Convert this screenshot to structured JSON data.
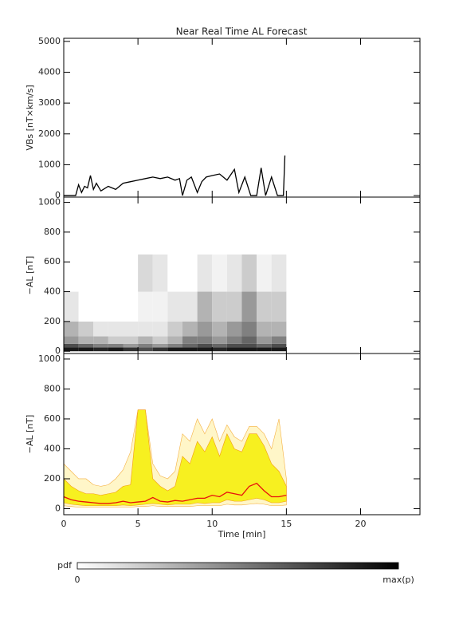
{
  "chart_data": [
    {
      "type": "line",
      "title": "Near Real Time AL Forecast",
      "ylabel": "VBs [nT×km/s]",
      "xlim": [
        0,
        24
      ],
      "xticks": [
        0,
        5,
        10,
        15,
        20
      ],
      "ylim": [
        -50,
        5100
      ],
      "yticks": [
        0,
        1000,
        2000,
        3000,
        4000,
        5000
      ],
      "x": [
        0,
        0.8,
        1.0,
        1.2,
        1.4,
        1.6,
        1.8,
        2.0,
        2.2,
        2.5,
        3.0,
        3.5,
        4.0,
        4.5,
        5.0,
        5.5,
        6.0,
        6.5,
        7.0,
        7.5,
        7.8,
        8.0,
        8.3,
        8.6,
        9.0,
        9.3,
        9.6,
        10.0,
        10.5,
        11.0,
        11.5,
        11.8,
        12.2,
        12.6,
        13.0,
        13.3,
        13.6,
        14.0,
        14.4,
        14.8,
        14.9
      ],
      "series": [
        {
          "color": "#000000",
          "values": [
            0,
            0,
            350,
            100,
            300,
            250,
            650,
            200,
            400,
            150,
            300,
            200,
            400,
            450,
            500,
            550,
            600,
            550,
            600,
            500,
            550,
            0,
            500,
            600,
            100,
            450,
            600,
            650,
            700,
            500,
            850,
            100,
            600,
            0,
            0,
            900,
            0,
            600,
            0,
            0,
            1300
          ]
        }
      ]
    },
    {
      "type": "heatmap",
      "ylabel": "−AL [nT]",
      "xlim": [
        0,
        24
      ],
      "xticks": [
        0,
        5,
        10,
        15,
        20
      ],
      "ylim": [
        -15,
        1035
      ],
      "yticks": [
        0,
        200,
        400,
        600,
        800,
        1000
      ],
      "x_edges": [
        0,
        1,
        2,
        3,
        4,
        5,
        6,
        7,
        8,
        9,
        10,
        11,
        12,
        13,
        14,
        15
      ],
      "y_edges": [
        0,
        25,
        50,
        100,
        200,
        400,
        650
      ],
      "z": [
        [
          0.9,
          0.9,
          0.85,
          0.9,
          0.8,
          0.7,
          0.8,
          0.9,
          0.9,
          0.9,
          0.85,
          0.9,
          0.9,
          0.9,
          0.9
        ],
        [
          0.7,
          0.6,
          0.5,
          0.5,
          0.4,
          0.5,
          0.4,
          0.5,
          0.6,
          0.7,
          0.6,
          0.7,
          0.7,
          0.6,
          0.7
        ],
        [
          0.4,
          0.3,
          0.3,
          0.2,
          0.2,
          0.3,
          0.2,
          0.3,
          0.5,
          0.5,
          0.4,
          0.5,
          0.6,
          0.4,
          0.5
        ],
        [
          0.3,
          0.2,
          0.1,
          0.1,
          0.1,
          0.1,
          0.1,
          0.2,
          0.3,
          0.4,
          0.3,
          0.4,
          0.5,
          0.3,
          0.3
        ],
        [
          0.1,
          0,
          0,
          0,
          0,
          0.05,
          0.05,
          0.1,
          0.1,
          0.3,
          0.2,
          0.2,
          0.4,
          0.2,
          0.2
        ],
        [
          0,
          0,
          0,
          0,
          0,
          0.15,
          0.1,
          0,
          0,
          0.1,
          0.05,
          0.1,
          0.2,
          0.05,
          0.1
        ]
      ]
    },
    {
      "type": "band",
      "ylabel": "−AL [nT]",
      "xlabel": "Time [min]",
      "xlim": [
        0,
        24
      ],
      "xticks": [
        0,
        5,
        10,
        15,
        20
      ],
      "ylim": [
        -40,
        1037
      ],
      "yticks": [
        0,
        200,
        400,
        600,
        800,
        1000
      ],
      "x": [
        0,
        0.5,
        1,
        1.5,
        2,
        2.5,
        3,
        3.5,
        4,
        4.5,
        5,
        5.5,
        6,
        6.5,
        7,
        7.5,
        8,
        8.5,
        9,
        9.5,
        10,
        10.5,
        11,
        11.5,
        12,
        12.5,
        13,
        13.5,
        14,
        14.5,
        15
      ],
      "bands": [
        {
          "color": "#fff6c8",
          "edge": "#f5b041",
          "lower": [
            20,
            15,
            10,
            10,
            10,
            10,
            10,
            10,
            10,
            10,
            15,
            15,
            20,
            15,
            15,
            15,
            15,
            15,
            20,
            20,
            20,
            20,
            30,
            25,
            25,
            30,
            35,
            30,
            20,
            20,
            25
          ],
          "upper": [
            300,
            250,
            200,
            200,
            160,
            150,
            160,
            200,
            260,
            380,
            660,
            660,
            300,
            220,
            200,
            250,
            500,
            450,
            600,
            500,
            600,
            450,
            560,
            480,
            450,
            550,
            550,
            500,
            400,
            600,
            200
          ]
        },
        {
          "color": "#f7f020",
          "edge": "#f39c12",
          "lower": [
            40,
            30,
            25,
            20,
            20,
            20,
            20,
            20,
            25,
            20,
            25,
            30,
            35,
            30,
            25,
            30,
            30,
            30,
            40,
            35,
            40,
            40,
            60,
            50,
            50,
            60,
            70,
            60,
            40,
            40,
            50
          ],
          "upper": [
            200,
            150,
            120,
            100,
            100,
            90,
            100,
            110,
            150,
            160,
            660,
            660,
            200,
            150,
            120,
            150,
            350,
            300,
            450,
            380,
            480,
            350,
            500,
            400,
            380,
            500,
            500,
            420,
            300,
            250,
            150
          ]
        }
      ],
      "series": [
        {
          "color": "#e8100c",
          "values": [
            80,
            60,
            50,
            45,
            40,
            35,
            35,
            40,
            50,
            40,
            45,
            50,
            75,
            50,
            45,
            55,
            50,
            60,
            70,
            70,
            90,
            80,
            110,
            100,
            90,
            150,
            170,
            120,
            80,
            80,
            90
          ]
        }
      ]
    }
  ],
  "colorbar": {
    "label": "pdf",
    "min_label": "0",
    "max_label": "max(p)",
    "colors": [
      "#ffffff",
      "#000000"
    ]
  }
}
